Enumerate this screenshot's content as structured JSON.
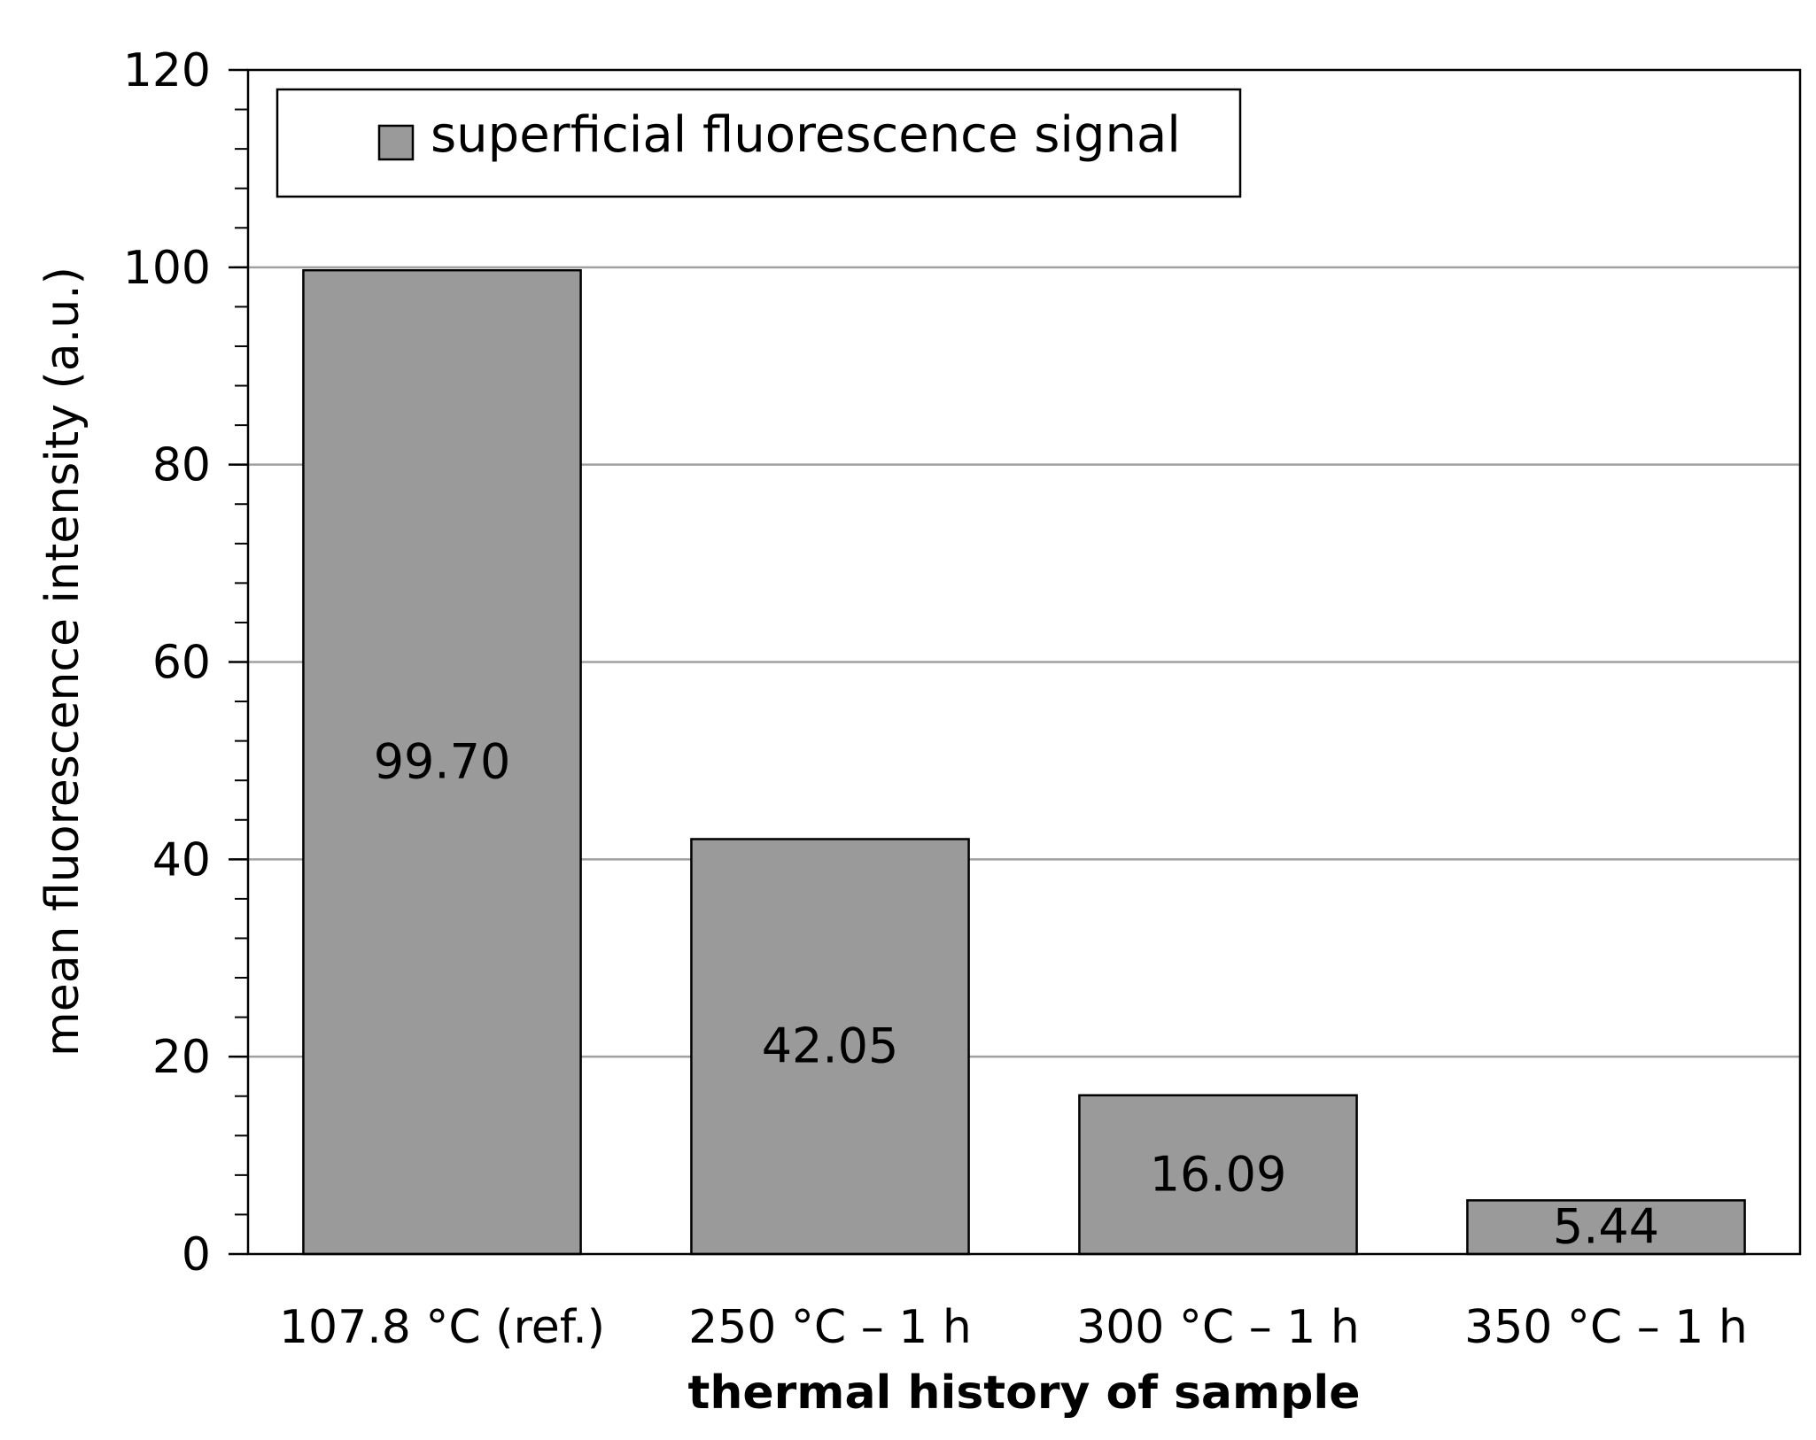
{
  "chart_data": {
    "type": "bar",
    "title": "",
    "categories": [
      "107.8 °C (ref.)",
      "250 °C – 1 h",
      "300 °C – 1 h",
      "350 °C – 1 h"
    ],
    "series": [
      {
        "name": "superficial fluorescence signal",
        "values": [
          99.7,
          42.05,
          16.09,
          5.44
        ],
        "value_labels": [
          "99.70",
          "42.05",
          "16.09",
          "5.44"
        ]
      }
    ],
    "xlabel": "thermal history of sample",
    "ylabel": "mean fluorescence intensity (a.u.)",
    "ylim": [
      0,
      120
    ],
    "yticks": [
      0,
      20,
      40,
      60,
      80,
      100,
      120
    ],
    "minor_tick_step": 4,
    "grid": "horizontal-major",
    "legend_position": "top-left",
    "colors": {
      "bar_fill": "#9a9a9a",
      "bar_stroke": "#000000",
      "grid": "#a0a0a0",
      "axis": "#000000"
    }
  }
}
